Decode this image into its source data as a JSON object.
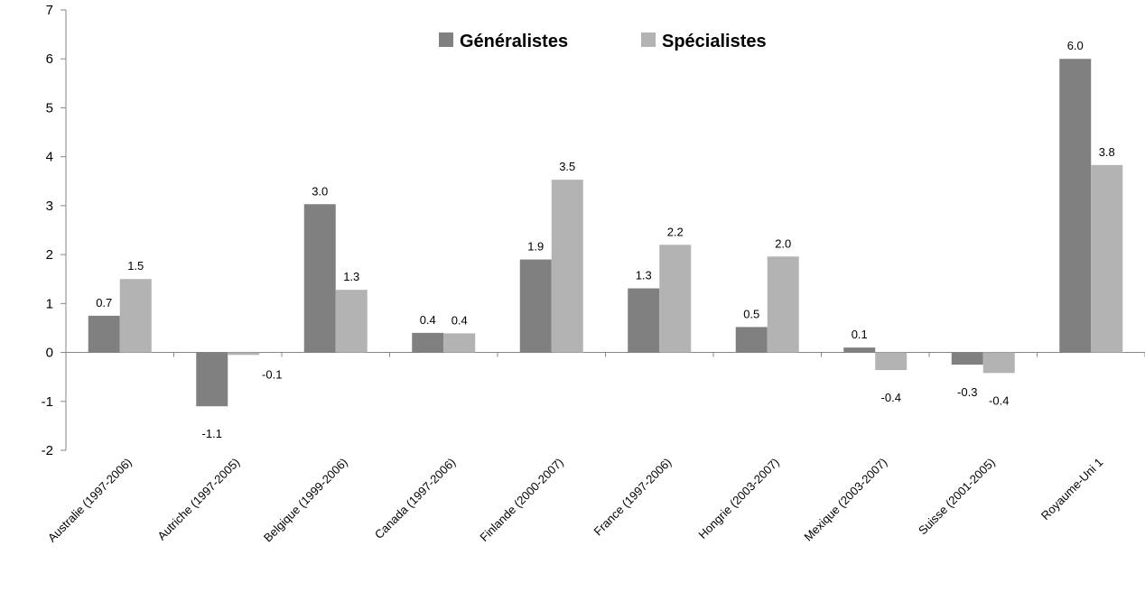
{
  "chart_data": {
    "type": "bar",
    "title": "",
    "xlabel": "",
    "ylabel": "",
    "ylim": [
      -2,
      7
    ],
    "yticks": [
      "-2",
      "-1",
      "0",
      "1",
      "2",
      "3",
      "4",
      "5",
      "6",
      "7"
    ],
    "grid": false,
    "legend_position": "top-center",
    "categories": [
      "Australie (1997-2006)",
      "Autriche (1997-2005)",
      "Belgique (1999-2006)",
      "Canada (1997-2006)",
      "Finlande (2000-2007)",
      "France (1997-2006)",
      "Hongrie (2003-2007)",
      "Mexique (2003-2007)",
      "Suisse (2001-2005)",
      "Royaume-Uni 1"
    ],
    "series": [
      {
        "name": "Généralistes",
        "color": "#808080",
        "values": [
          0.75,
          -1.1,
          3.03,
          0.4,
          1.9,
          1.31,
          0.52,
          0.1,
          -0.25,
          6.0
        ],
        "labels": [
          "0.7",
          "-1.1",
          "3.0",
          "0.4",
          "1.9",
          "1.3",
          "0.5",
          "0.1",
          "-0.3",
          "6.0"
        ]
      },
      {
        "name": "Spécialistes",
        "color": "#b3b3b3",
        "values": [
          1.5,
          -0.05,
          1.28,
          0.39,
          3.53,
          2.2,
          1.96,
          -0.36,
          -0.42,
          3.83
        ],
        "labels": [
          "1.5",
          "-0.1",
          "1.3",
          "0.4",
          "3.5",
          "2.2",
          "2.0",
          "-0.4",
          "-0.4",
          "3.8"
        ]
      }
    ]
  }
}
